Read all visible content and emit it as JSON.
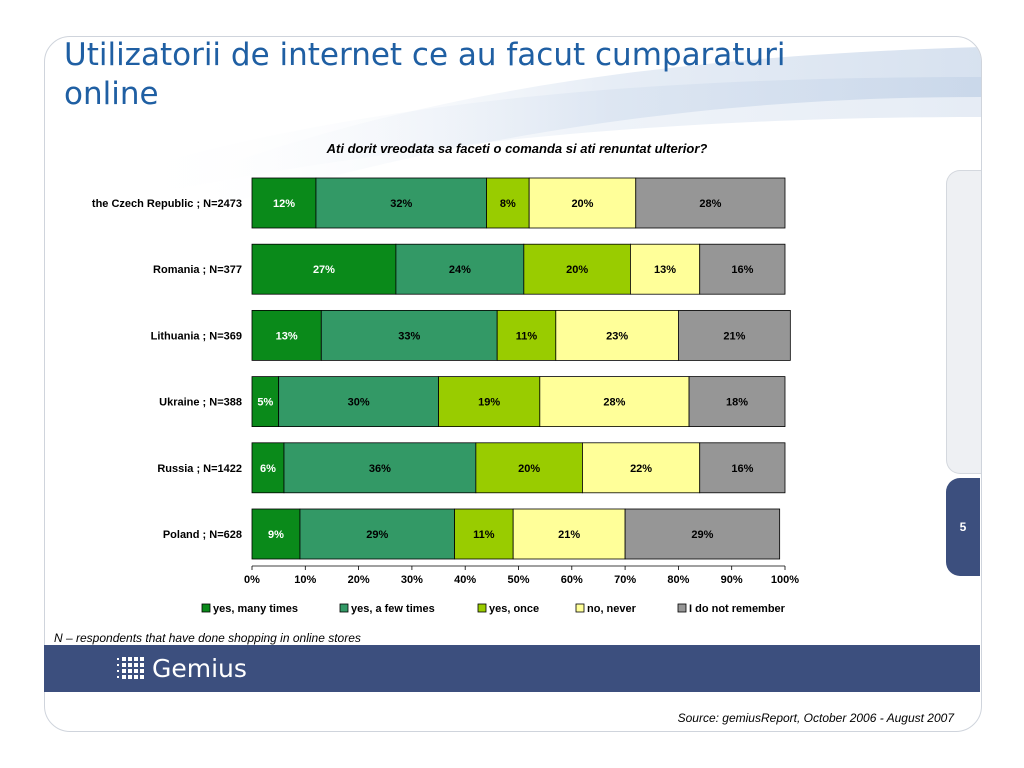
{
  "slide": {
    "title": "Utilizatorii de internet ce au facut cumparaturi online",
    "page_number": "5",
    "footnote": "N – respondents that have done shopping in online stores",
    "logo_text": "Gemius",
    "source": "Source: gemiusReport, October 2006 - August 2007"
  },
  "chart_data": {
    "type": "bar",
    "orientation": "horizontal",
    "stacked": true,
    "title": "Ati dorit vreodata sa faceti o comanda si ati renuntat ulterior?",
    "categories": [
      "the Czech Republic ; N=2473",
      "Romania ; N=377",
      "Lithuania ; N=369",
      "Ukraine ; N=388",
      "Russia ; N=1422",
      "Poland ; N=628"
    ],
    "series": [
      {
        "name": "yes, many times",
        "color": "#0a8a1a",
        "label_color": "#ffffff",
        "values": [
          12,
          27,
          13,
          5,
          6,
          9
        ]
      },
      {
        "name": "yes, a few times",
        "color": "#339966",
        "label_color": "#000000",
        "values": [
          32,
          24,
          33,
          30,
          36,
          29
        ]
      },
      {
        "name": "yes, once",
        "color": "#99cc00",
        "label_color": "#000000",
        "values": [
          8,
          20,
          11,
          19,
          20,
          11
        ]
      },
      {
        "name": "no, never",
        "color": "#ffff99",
        "label_color": "#000000",
        "values": [
          20,
          13,
          23,
          28,
          22,
          21
        ]
      },
      {
        "name": "I do not remember",
        "color": "#969696",
        "label_color": "#000000",
        "values": [
          28,
          16,
          21,
          18,
          16,
          29
        ]
      }
    ],
    "xlim": [
      0,
      100
    ],
    "xticks": [
      "0%",
      "10%",
      "20%",
      "30%",
      "40%",
      "50%",
      "60%",
      "70%",
      "80%",
      "90%",
      "100%"
    ],
    "value_suffix": "%",
    "legend_position": "bottom",
    "grid": false
  }
}
